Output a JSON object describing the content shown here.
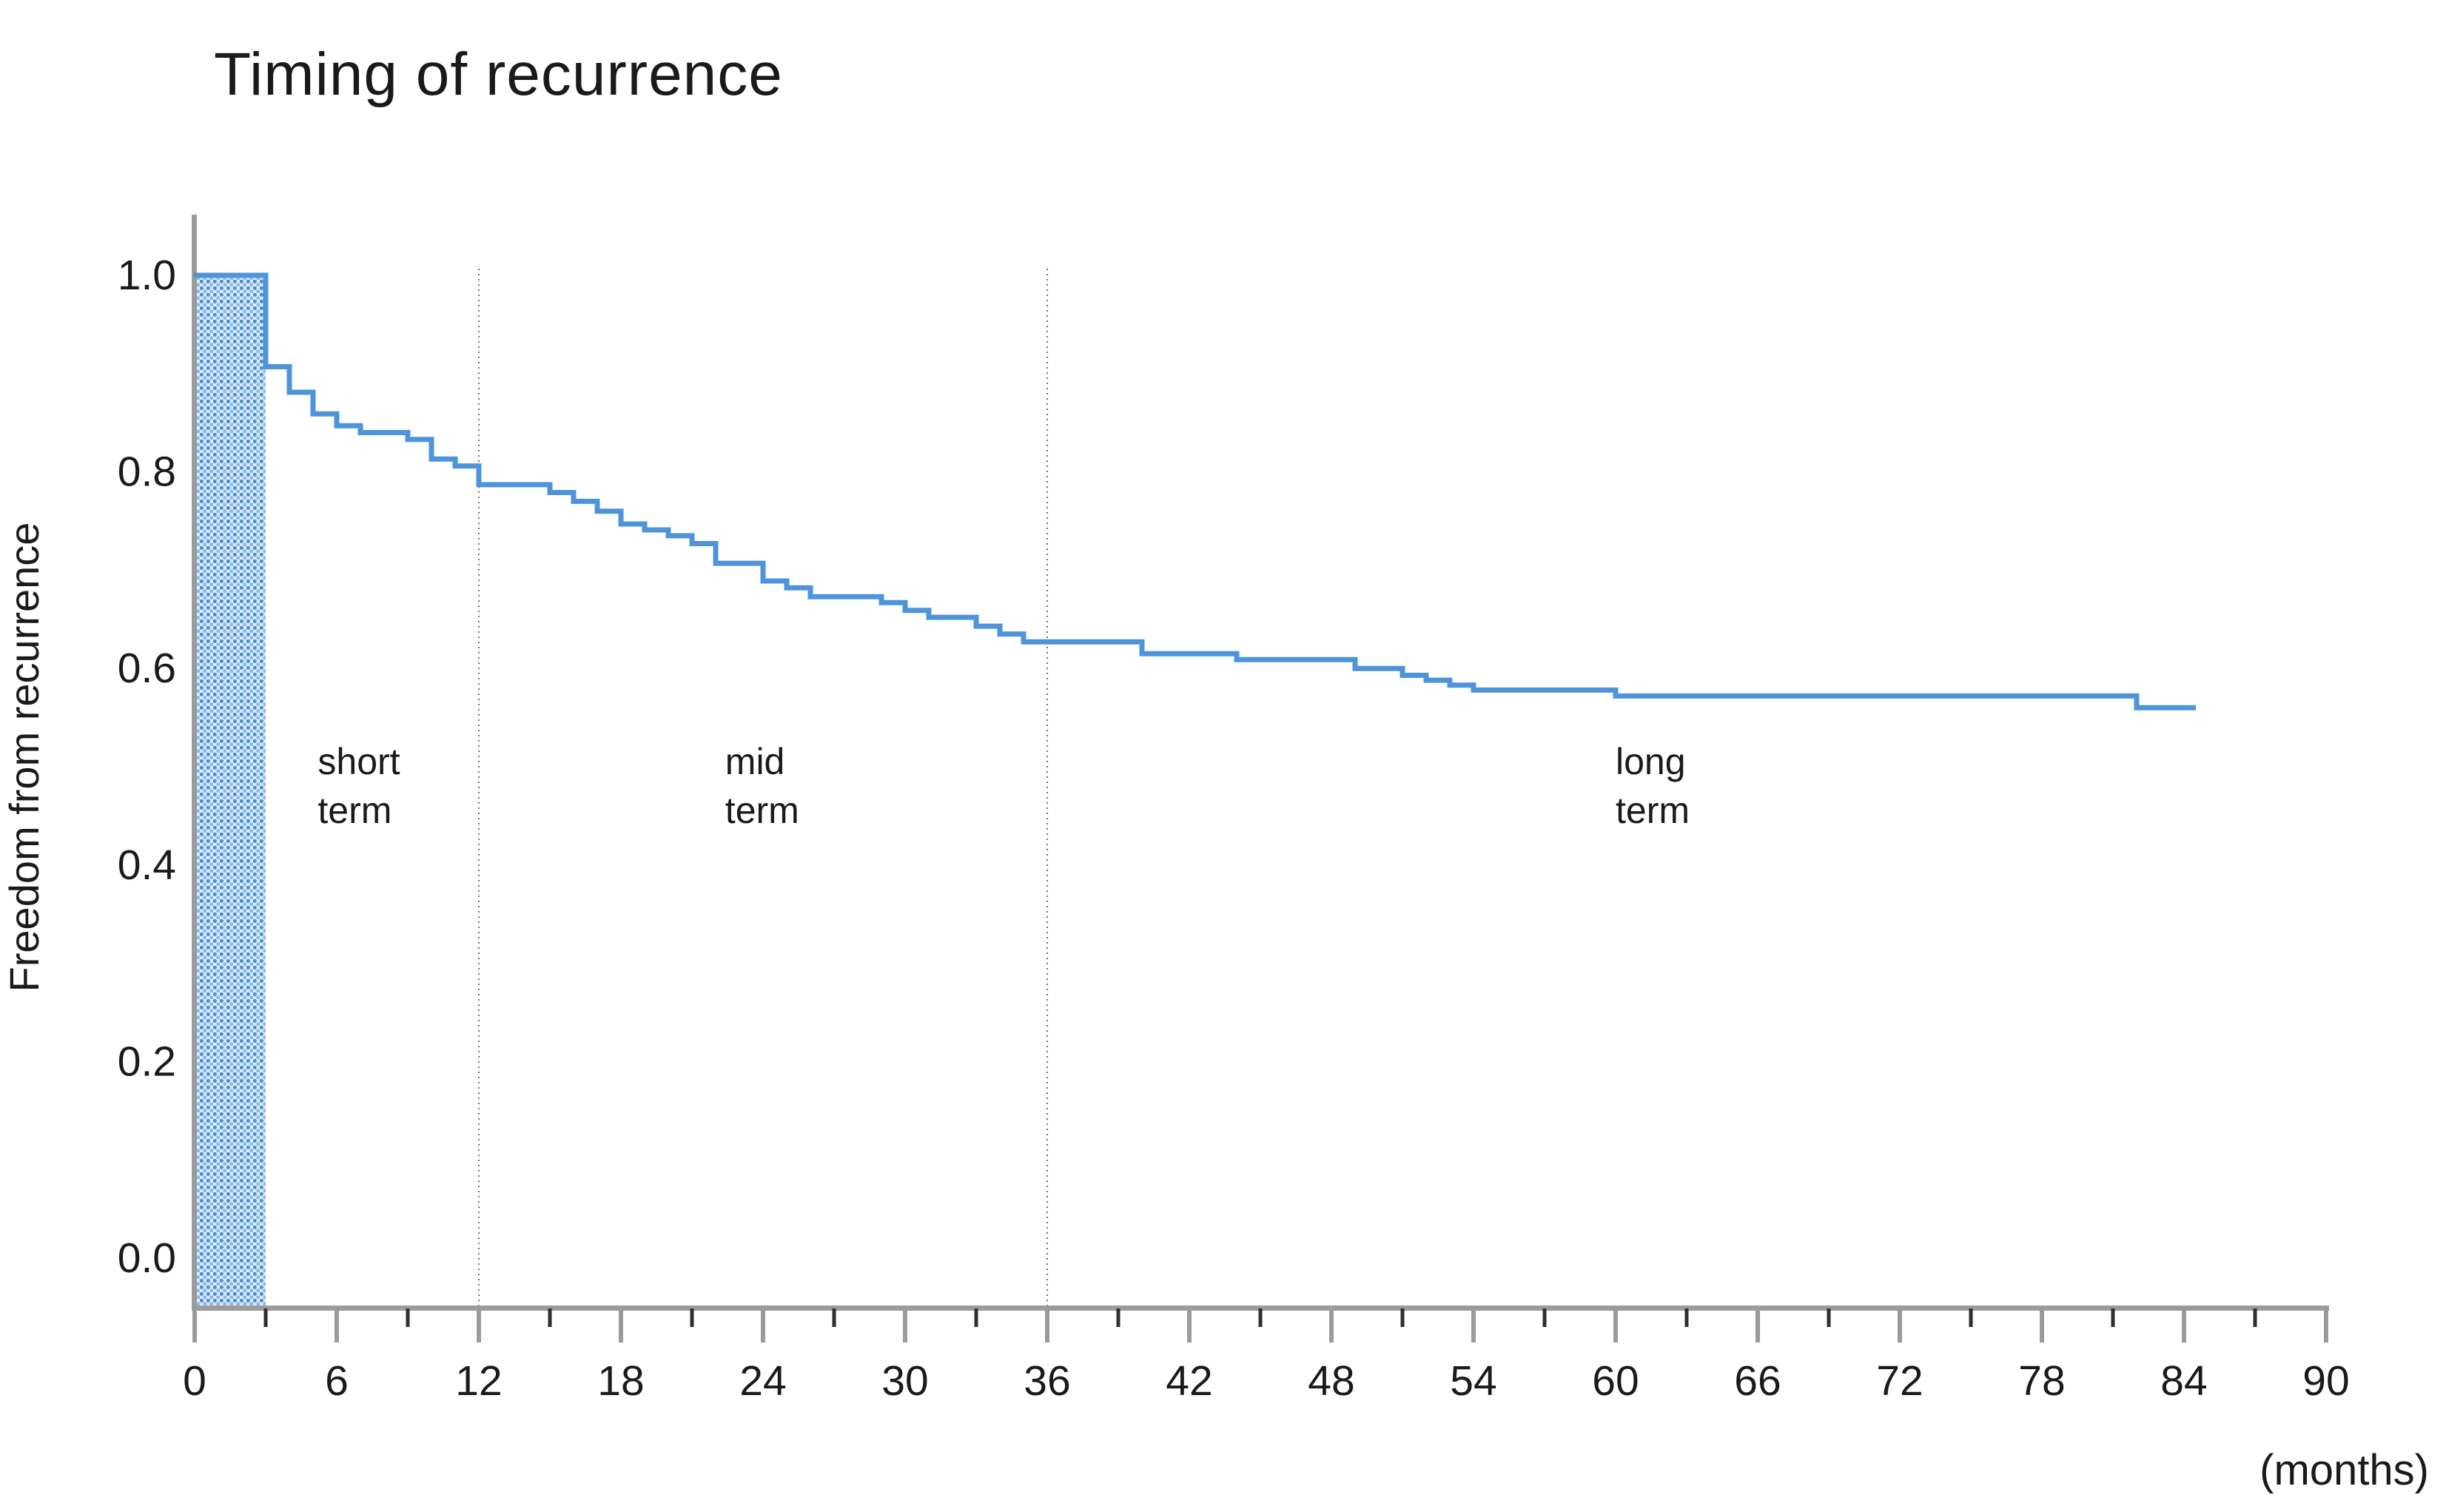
{
  "title": "Timing of recurrence",
  "y_axis": {
    "label": "Freedom from recurrence",
    "tick_labels": [
      "1.0",
      "0.8",
      "0.6",
      "0.4",
      "0.2",
      "0.0"
    ],
    "tick_values": [
      1.0,
      0.8,
      0.6,
      0.4,
      0.2,
      0.0
    ]
  },
  "x_axis": {
    "unit_label": "(months)",
    "major_ticks": [
      0,
      6,
      12,
      18,
      24,
      30,
      36,
      42,
      48,
      54,
      60,
      66,
      72,
      78,
      84,
      90
    ],
    "minor_ticks": [
      3,
      9,
      15,
      21,
      27,
      33,
      39,
      45,
      51,
      57,
      63,
      69,
      75,
      81,
      87
    ]
  },
  "annotations": {
    "terms": [
      {
        "name": "short-term",
        "lines": [
          "short",
          "term"
        ],
        "month": 5.2
      },
      {
        "name": "mid-term",
        "lines": [
          "mid",
          "term"
        ],
        "month": 22.4
      },
      {
        "name": "long-term",
        "lines": [
          "long",
          "term"
        ],
        "month": 60.0
      }
    ]
  },
  "colors": {
    "curve": "#4d94da",
    "shade_dot_dark": "#4790d6",
    "shade_dot_light": "#8ab9e6",
    "shade_bg": "#ddebf8",
    "axis": "#9b9b9b",
    "minor_tick": "#2f2f2f",
    "gridline": "#6e6e6e",
    "text": "#1a1a1a"
  },
  "chart_data": {
    "type": "line",
    "subtype": "kaplan-meier-step",
    "title": "Timing of recurrence",
    "xlabel": "(months)",
    "ylabel": "Freedom from recurrence",
    "xlim": [
      0,
      90
    ],
    "ylim": [
      0.0,
      1.0
    ],
    "x_tick_interval": 6,
    "grid_vertical_months": [
      12,
      36
    ],
    "shaded_region": {
      "start_month": 0,
      "end_month": 3,
      "style": "blue-dotted-hatch",
      "full_height": true
    },
    "steps": [
      [
        0,
        1.0
      ],
      [
        3,
        0.907
      ],
      [
        4,
        0.881
      ],
      [
        5,
        0.859
      ],
      [
        6,
        0.847
      ],
      [
        7,
        0.84
      ],
      [
        9,
        0.833
      ],
      [
        10,
        0.813
      ],
      [
        11,
        0.806
      ],
      [
        12,
        0.787
      ],
      [
        15,
        0.779
      ],
      [
        16,
        0.77
      ],
      [
        17,
        0.76
      ],
      [
        18,
        0.747
      ],
      [
        19,
        0.741
      ],
      [
        20,
        0.735
      ],
      [
        21,
        0.727
      ],
      [
        22,
        0.707
      ],
      [
        24,
        0.689
      ],
      [
        25,
        0.682
      ],
      [
        26,
        0.673
      ],
      [
        29,
        0.667
      ],
      [
        30,
        0.659
      ],
      [
        31,
        0.652
      ],
      [
        33,
        0.643
      ],
      [
        34,
        0.635
      ],
      [
        35,
        0.627
      ],
      [
        40,
        0.615
      ],
      [
        44,
        0.609
      ],
      [
        49,
        0.6
      ],
      [
        51,
        0.593
      ],
      [
        52,
        0.588
      ],
      [
        53,
        0.583
      ],
      [
        54,
        0.578
      ],
      [
        60,
        0.572
      ],
      [
        82,
        0.56
      ]
    ],
    "end_month": 84.5,
    "legend": "none",
    "period_labels": [
      "short term",
      "mid term",
      "long term"
    ]
  }
}
